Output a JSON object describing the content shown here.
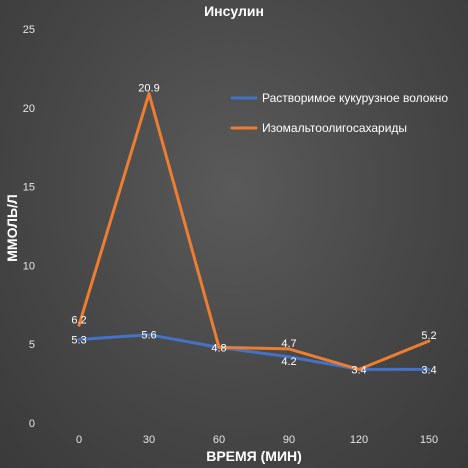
{
  "chart_data": {
    "type": "line",
    "title": "Инсулин",
    "xlabel": "ВРЕМЯ (МИН)",
    "ylabel": "ММОЛЬ/Л",
    "x": [
      0,
      30,
      60,
      90,
      120,
      150
    ],
    "x_tick_labels": [
      "0",
      "30",
      "60",
      "90",
      "120",
      "150"
    ],
    "y_tick_labels": [
      "0",
      "5",
      "10",
      "15",
      "20",
      "25"
    ],
    "ylim": [
      0,
      25
    ],
    "grid": false,
    "legend_position": "top-right",
    "series": [
      {
        "name": "Растворимое кукурузное волокно",
        "color": "#4472C4",
        "values": [
          5.3,
          5.6,
          4.8,
          4.2,
          3.4,
          3.4
        ],
        "labels": [
          "5.3",
          "5.6",
          "4.8",
          "4.2",
          "3.4",
          "3.4"
        ]
      },
      {
        "name": "Изомальтоолигосахариды",
        "color": "#ED7D31",
        "values": [
          6.2,
          20.9,
          4.8,
          4.7,
          3.4,
          5.2
        ],
        "labels": [
          "6.2",
          "20.9",
          "",
          "4.7",
          "",
          "5.2"
        ]
      }
    ]
  }
}
